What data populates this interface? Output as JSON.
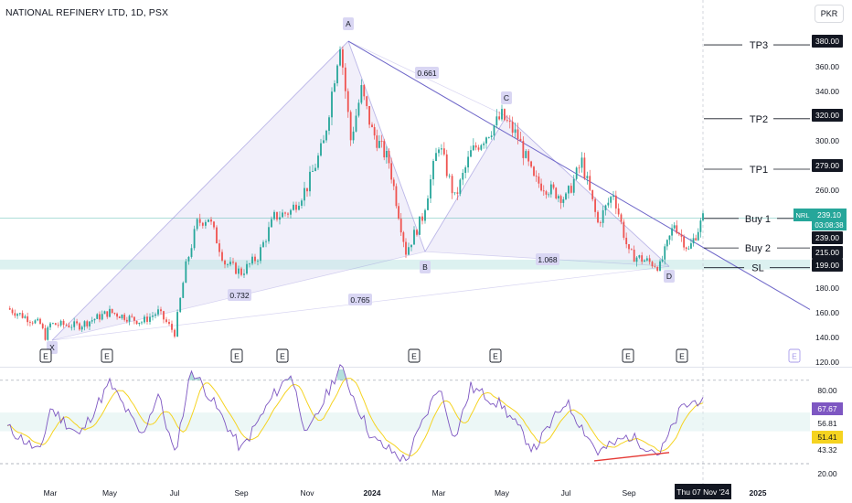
{
  "header": {
    "title": "NATIONAL REFINERY LTD, 1D, PSX",
    "currency": "PKR"
  },
  "colors": {
    "up": "#26a69a",
    "down": "#ef5350",
    "pattern_line": "#8b84d7",
    "pattern_fill": "#ece9f8",
    "zone": "#bfe6e4",
    "rsi_line": "#7e57c2",
    "rsi_ma": "#f5d320",
    "divergence": "#e53935"
  },
  "price_axis": {
    "ticks": [
      "380.00",
      "360.00",
      "340.00",
      "320.00",
      "300.00",
      "280.00",
      "260.00",
      "240.00",
      "220.00",
      "200.00",
      "180.00",
      "160.00",
      "140.00",
      "120.00"
    ]
  },
  "rsi_axis": {
    "ticks": [
      "80.00",
      "60.00",
      "40.00",
      "20.00"
    ]
  },
  "time_axis": {
    "labels": [
      "Mar",
      "May",
      "Jul",
      "Sep",
      "Nov",
      "2024",
      "Mar",
      "May",
      "Jul",
      "Sep",
      "2025"
    ],
    "cursor_label": "Thu 07 Nov '24"
  },
  "levels": [
    {
      "label": "TP3",
      "value": "380.00"
    },
    {
      "label": "TP2",
      "value": "320.00"
    },
    {
      "label": "TP1",
      "value": "279.00"
    },
    {
      "label": "Buy 1",
      "value": "239.00"
    },
    {
      "label": "Buy 2",
      "value": "215.00"
    },
    {
      "label": "SL",
      "value": "199.00"
    }
  ],
  "last_price": {
    "symbol": "NRL",
    "price": "239.10",
    "countdown": "03:08:38"
  },
  "rsi": {
    "value": "67.67",
    "level_upper": "56.81",
    "ma_value": "51.41",
    "level_lower": "43.32"
  },
  "pattern": {
    "points": [
      "X",
      "A",
      "B",
      "C",
      "D"
    ],
    "ratios": {
      "xab": "0.732",
      "ac": "0.661",
      "bd": "1.068",
      "xad": "0.765"
    }
  },
  "events": {
    "marker": "E"
  },
  "chart_data": [
    {
      "type": "candlestick",
      "title": "NATIONAL REFINERY LTD, 1D, PSX",
      "x_range": [
        "2023-01",
        "2025-01"
      ],
      "ylim": [
        120,
        400
      ],
      "pattern_points": [
        {
          "name": "X",
          "date": "2023-02",
          "price": 140
        },
        {
          "name": "A",
          "date": "2023-12",
          "price": 383
        },
        {
          "name": "B",
          "date": "2024-02",
          "price": 212
        },
        {
          "name": "C",
          "date": "2024-05",
          "price": 322
        },
        {
          "name": "D",
          "date": "2024-10",
          "price": 200
        }
      ],
      "close_trace": [
        {
          "date": "2023-01",
          "price": 166
        },
        {
          "date": "2023-02",
          "price": 153
        },
        {
          "date": "2023-02",
          "price": 143
        },
        {
          "date": "2023-03",
          "price": 153
        },
        {
          "date": "2023-04",
          "price": 152
        },
        {
          "date": "2023-05",
          "price": 163
        },
        {
          "date": "2023-06",
          "price": 155
        },
        {
          "date": "2023-06",
          "price": 163
        },
        {
          "date": "2023-07",
          "price": 146
        },
        {
          "date": "2023-07",
          "price": 200
        },
        {
          "date": "2023-07",
          "price": 235
        },
        {
          "date": "2023-08",
          "price": 240
        },
        {
          "date": "2023-08",
          "price": 203
        },
        {
          "date": "2023-09",
          "price": 195
        },
        {
          "date": "2023-09",
          "price": 208
        },
        {
          "date": "2023-10",
          "price": 240
        },
        {
          "date": "2023-10",
          "price": 245
        },
        {
          "date": "2023-11",
          "price": 265
        },
        {
          "date": "2023-11",
          "price": 300
        },
        {
          "date": "2023-12",
          "price": 383
        },
        {
          "date": "2023-12",
          "price": 303
        },
        {
          "date": "2023-12",
          "price": 343
        },
        {
          "date": "2024-01",
          "price": 310
        },
        {
          "date": "2024-01",
          "price": 285
        },
        {
          "date": "2024-02",
          "price": 212
        },
        {
          "date": "2024-02",
          "price": 240
        },
        {
          "date": "2024-03",
          "price": 300
        },
        {
          "date": "2024-03",
          "price": 255
        },
        {
          "date": "2024-04",
          "price": 292
        },
        {
          "date": "2024-05",
          "price": 322
        },
        {
          "date": "2024-05",
          "price": 305
        },
        {
          "date": "2024-06",
          "price": 270
        },
        {
          "date": "2024-07",
          "price": 255
        },
        {
          "date": "2024-07",
          "price": 285
        },
        {
          "date": "2024-08",
          "price": 235
        },
        {
          "date": "2024-08",
          "price": 260
        },
        {
          "date": "2024-09",
          "price": 210
        },
        {
          "date": "2024-10",
          "price": 200
        },
        {
          "date": "2024-10",
          "price": 235
        },
        {
          "date": "2024-10",
          "price": 213
        },
        {
          "date": "2024-11",
          "price": 239.1
        }
      ],
      "horizontal_levels": [
        {
          "name": "TP3",
          "value": 380
        },
        {
          "name": "TP2",
          "value": 320
        },
        {
          "name": "TP1",
          "value": 279
        },
        {
          "name": "Buy 1",
          "value": 239
        },
        {
          "name": "Buy 2",
          "value": 215
        },
        {
          "name": "SL",
          "value": 199
        }
      ],
      "support_zone": [
        199,
        204
      ]
    },
    {
      "type": "line",
      "ylim": [
        15,
        95
      ],
      "reference_lines": [
        80,
        56.81,
        43.32,
        20
      ],
      "series": [
        {
          "values": [
            {
              "date": "2023-01",
              "v": 46
            },
            {
              "date": "2023-02",
              "v": 28
            },
            {
              "date": "2023-03",
              "v": 60
            },
            {
              "date": "2023-04",
              "v": 40
            },
            {
              "date": "2023-05",
              "v": 78
            },
            {
              "date": "2023-06",
              "v": 40
            },
            {
              "date": "2023-06",
              "v": 70
            },
            {
              "date": "2023-07",
              "v": 26
            },
            {
              "date": "2023-07",
              "v": 88
            },
            {
              "date": "2023-08",
              "v": 70
            },
            {
              "date": "2023-09",
              "v": 30
            },
            {
              "date": "2023-10",
              "v": 70
            },
            {
              "date": "2023-10",
              "v": 85
            },
            {
              "date": "2023-11",
              "v": 40
            },
            {
              "date": "2023-12",
              "v": 90
            },
            {
              "date": "2024-01",
              "v": 38
            },
            {
              "date": "2024-02",
              "v": 22
            },
            {
              "date": "2024-03",
              "v": 76
            },
            {
              "date": "2024-03",
              "v": 38
            },
            {
              "date": "2024-04",
              "v": 75
            },
            {
              "date": "2024-05",
              "v": 62
            },
            {
              "date": "2024-06",
              "v": 30
            },
            {
              "date": "2024-07",
              "v": 65
            },
            {
              "date": "2024-08",
              "v": 28
            },
            {
              "date": "2024-09",
              "v": 40
            },
            {
              "date": "2024-10",
              "v": 27
            },
            {
              "date": "2024-10",
              "v": 60
            },
            {
              "date": "2024-11",
              "v": 67.67
            }
          ]
        }
      ]
    }
  ]
}
